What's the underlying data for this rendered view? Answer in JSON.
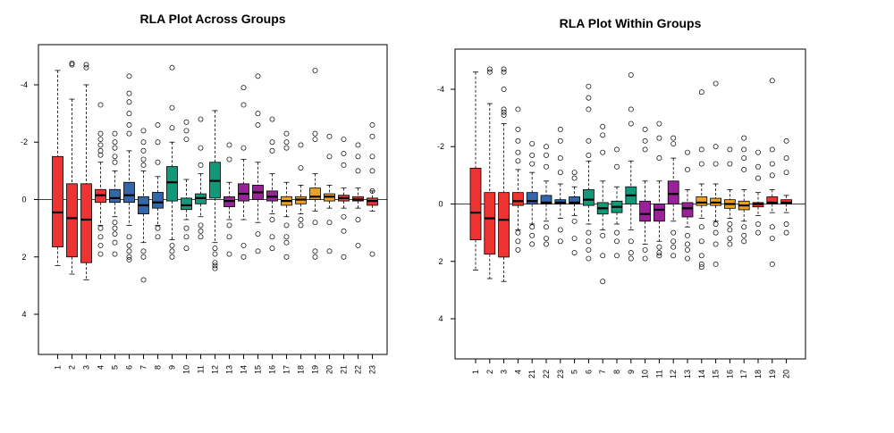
{
  "colors": {
    "red": "#EE3333",
    "blue": "#3366AA",
    "green": "#11997A",
    "purple": "#992299",
    "orange": "#EEA020",
    "outline": "#000000"
  },
  "chart_data": [
    {
      "type": "boxplot",
      "title": "RLA Plot Across Groups",
      "xlabel": "",
      "ylabel": "",
      "y_reversed": true,
      "ylim": [
        5.4,
        -5.4
      ],
      "yticks": [
        -4,
        -2,
        0,
        2,
        4
      ],
      "reference_line": 0,
      "legend": "none",
      "boxes": [
        {
          "label": "1",
          "color": "red",
          "whisker_low": -4.5,
          "q1": -1.5,
          "median": 0.45,
          "q3": 1.65,
          "whisker_high": 2.3,
          "outliers": []
        },
        {
          "label": "2",
          "color": "red",
          "whisker_low": -3.5,
          "q1": -0.55,
          "median": 0.65,
          "q3": 2.0,
          "whisker_high": 2.6,
          "outliers": [
            -4.75,
            -4.7
          ]
        },
        {
          "label": "3",
          "color": "red",
          "whisker_low": -4.0,
          "q1": -0.55,
          "median": 0.7,
          "q3": 2.2,
          "whisker_high": 2.8,
          "outliers": [
            -4.7,
            -4.6
          ]
        },
        {
          "label": "4",
          "color": "red",
          "whisker_low": -1.3,
          "q1": -0.35,
          "median": -0.15,
          "q3": 0.1,
          "whisker_high": 0.9,
          "outliers": [
            -3.3,
            -2.3,
            -2.1,
            -1.9,
            -1.7,
            -1.55,
            1.0,
            1.3,
            1.6,
            1.9
          ]
        },
        {
          "label": "5",
          "color": "blue",
          "whisker_low": -1.0,
          "q1": -0.35,
          "median": -0.05,
          "q3": 0.1,
          "whisker_high": 0.6,
          "outliers": [
            -2.3,
            -2.0,
            -1.8,
            -1.5,
            -1.3,
            0.8,
            1.0,
            1.2,
            1.5,
            1.9
          ]
        },
        {
          "label": "6",
          "color": "blue",
          "whisker_low": -1.7,
          "q1": -0.6,
          "median": -0.15,
          "q3": 0.1,
          "whisker_high": 0.9,
          "outliers": [
            -4.3,
            -3.7,
            -3.4,
            -3.0,
            -2.6,
            -2.3,
            1.3,
            1.6,
            1.8,
            2.0,
            2.1
          ]
        },
        {
          "label": "7",
          "color": "blue",
          "whisker_low": -1.0,
          "q1": -0.1,
          "median": 0.2,
          "q3": 0.5,
          "whisker_high": 1.5,
          "outliers": [
            -2.4,
            -2.0,
            -1.7,
            -1.4,
            -1.2,
            1.8,
            2.0,
            2.8
          ]
        },
        {
          "label": "8",
          "color": "blue",
          "whisker_low": -0.8,
          "q1": -0.25,
          "median": 0.1,
          "q3": 0.3,
          "whisker_high": 0.9,
          "outliers": [
            -2.6,
            -2.0,
            -1.3,
            1.0,
            1.3
          ]
        },
        {
          "label": "9",
          "color": "green",
          "whisker_low": -2.0,
          "q1": -1.15,
          "median": -0.6,
          "q3": 0.05,
          "whisker_high": 1.4,
          "outliers": [
            -4.6,
            -3.2,
            -2.5,
            1.6,
            1.8,
            2.0
          ]
        },
        {
          "label": "10",
          "color": "green",
          "whisker_low": -0.7,
          "q1": -0.05,
          "median": 0.2,
          "q3": 0.35,
          "whisker_high": 0.7,
          "outliers": [
            -2.7,
            -2.4,
            -2.1,
            1.0,
            1.3,
            1.7
          ]
        },
        {
          "label": "11",
          "color": "green",
          "whisker_low": -0.9,
          "q1": -0.2,
          "median": -0.05,
          "q3": 0.15,
          "whisker_high": 0.6,
          "outliers": [
            -2.8,
            -1.8,
            -1.2,
            0.9,
            1.1,
            1.3
          ]
        },
        {
          "label": "12",
          "color": "green",
          "whisker_low": -3.1,
          "q1": -1.3,
          "median": -0.65,
          "q3": -0.05,
          "whisker_high": 1.5,
          "outliers": [
            1.7,
            1.9,
            2.2,
            2.3,
            2.4
          ]
        },
        {
          "label": "13",
          "color": "purple",
          "whisker_low": -0.6,
          "q1": -0.1,
          "median": 0.05,
          "q3": 0.25,
          "whisker_high": 0.7,
          "outliers": [
            -1.9,
            -1.4,
            0.9,
            1.3,
            1.9
          ]
        },
        {
          "label": "14",
          "color": "purple",
          "whisker_low": -1.4,
          "q1": -0.55,
          "median": -0.2,
          "q3": 0.05,
          "whisker_high": 0.7,
          "outliers": [
            -3.9,
            -3.3,
            -1.8,
            1.6,
            2.0
          ]
        },
        {
          "label": "15",
          "color": "purple",
          "whisker_low": -1.3,
          "q1": -0.5,
          "median": -0.25,
          "q3": 0.0,
          "whisker_high": 0.8,
          "outliers": [
            -4.3,
            -3.0,
            -2.6,
            1.2,
            1.8
          ]
        },
        {
          "label": "16",
          "color": "purple",
          "whisker_low": -0.9,
          "q1": -0.3,
          "median": -0.1,
          "q3": 0.05,
          "whisker_high": 0.5,
          "outliers": [
            -2.8,
            -2.0,
            -1.7,
            0.7,
            1.3,
            1.7
          ]
        },
        {
          "label": "17",
          "color": "orange",
          "whisker_low": -0.6,
          "q1": -0.1,
          "median": 0.05,
          "q3": 0.2,
          "whisker_high": 0.6,
          "outliers": [
            -2.3,
            -2.0,
            -1.8,
            0.9,
            1.3,
            1.5,
            2.0
          ]
        },
        {
          "label": "18",
          "color": "orange",
          "whisker_low": -0.5,
          "q1": -0.1,
          "median": 0.0,
          "q3": 0.15,
          "whisker_high": 0.5,
          "outliers": [
            -1.9,
            -1.1,
            0.7,
            0.9
          ]
        },
        {
          "label": "19",
          "color": "orange",
          "whisker_low": -0.9,
          "q1": -0.4,
          "median": -0.1,
          "q3": 0.0,
          "whisker_high": 0.4,
          "outliers": [
            -4.5,
            -2.3,
            -2.1,
            0.8,
            1.8,
            2.0
          ]
        },
        {
          "label": "20",
          "color": "orange",
          "whisker_low": -0.5,
          "q1": -0.2,
          "median": -0.1,
          "q3": 0.05,
          "whisker_high": 0.3,
          "outliers": [
            -2.2,
            -1.5,
            0.8,
            1.8
          ]
        },
        {
          "label": "21",
          "color": "red",
          "whisker_low": -0.4,
          "q1": -0.15,
          "median": -0.05,
          "q3": 0.05,
          "whisker_high": 0.3,
          "outliers": [
            -2.1,
            -1.6,
            -1.2,
            0.6,
            1.1,
            2.0
          ]
        },
        {
          "label": "22",
          "color": "red",
          "whisker_low": -0.4,
          "q1": -0.1,
          "median": 0.0,
          "q3": 0.05,
          "whisker_high": 0.3,
          "outliers": [
            -1.9,
            -1.5,
            -1.0,
            0.7,
            1.6
          ]
        },
        {
          "label": "23",
          "color": "red",
          "whisker_low": -0.3,
          "q1": -0.05,
          "median": 0.05,
          "q3": 0.2,
          "whisker_high": 0.4,
          "outliers": [
            -2.6,
            -2.2,
            -1.5,
            -1.0,
            -0.3,
            1.9
          ]
        }
      ]
    },
    {
      "type": "boxplot",
      "title": "RLA Plot Within Groups",
      "xlabel": "",
      "ylabel": "",
      "y_reversed": true,
      "ylim": [
        5.4,
        -5.4
      ],
      "yticks": [
        -4,
        -2,
        0,
        2,
        4
      ],
      "reference_line": 0,
      "legend": "none",
      "boxes": [
        {
          "label": "1",
          "color": "red",
          "whisker_low": -4.6,
          "q1": -1.25,
          "median": 0.3,
          "q3": 1.25,
          "whisker_high": 2.3,
          "outliers": []
        },
        {
          "label": "2",
          "color": "red",
          "whisker_low": -3.5,
          "q1": -0.4,
          "median": 0.5,
          "q3": 1.75,
          "whisker_high": 2.6,
          "outliers": [
            -4.7,
            -4.6
          ]
        },
        {
          "label": "3",
          "color": "red",
          "whisker_low": -2.8,
          "q1": -0.4,
          "median": 0.55,
          "q3": 1.85,
          "whisker_high": 2.7,
          "outliers": [
            -4.7,
            -4.6,
            -4.0,
            -3.3,
            -3.2,
            -3.1
          ]
        },
        {
          "label": "4",
          "color": "red",
          "whisker_low": -1.2,
          "q1": -0.4,
          "median": -0.1,
          "q3": 0.05,
          "whisker_high": 0.9,
          "outliers": [
            -3.3,
            -2.6,
            -2.2,
            -1.8,
            -1.5,
            1.0,
            1.3,
            1.6
          ]
        },
        {
          "label": "21",
          "color": "blue",
          "whisker_low": -1.1,
          "q1": -0.4,
          "median": -0.1,
          "q3": 0.0,
          "whisker_high": 0.7,
          "outliers": [
            -2.1,
            -1.7,
            -1.4,
            0.8,
            1.1,
            1.4
          ]
        },
        {
          "label": "22",
          "color": "blue",
          "whisker_low": -0.8,
          "q1": -0.3,
          "median": -0.05,
          "q3": 0.0,
          "whisker_high": 0.6,
          "outliers": [
            -2.0,
            -1.7,
            -1.3,
            0.8,
            1.2,
            1.4
          ]
        },
        {
          "label": "23",
          "color": "blue",
          "whisker_low": -0.7,
          "q1": -0.15,
          "median": -0.05,
          "q3": 0.0,
          "whisker_high": 0.5,
          "outliers": [
            -2.6,
            -2.2,
            -1.6,
            -1.1,
            0.9,
            1.3
          ]
        },
        {
          "label": "5",
          "color": "blue",
          "whisker_low": -0.6,
          "q1": -0.25,
          "median": -0.05,
          "q3": 0.0,
          "whisker_high": 0.4,
          "outliers": [
            -1.1,
            -0.9,
            0.6,
            1.2,
            1.7
          ]
        },
        {
          "label": "6",
          "color": "green",
          "whisker_low": -1.5,
          "q1": -0.5,
          "median": -0.15,
          "q3": 0.05,
          "whisker_high": 0.7,
          "outliers": [
            -4.1,
            -3.7,
            -3.3,
            -2.2,
            -1.7,
            1.0,
            1.3,
            1.6,
            1.9
          ]
        },
        {
          "label": "7",
          "color": "green",
          "whisker_low": -0.8,
          "q1": -0.05,
          "median": 0.15,
          "q3": 0.35,
          "whisker_high": 0.9,
          "outliers": [
            -2.7,
            -2.4,
            -1.8,
            1.1,
            1.8,
            2.7
          ]
        },
        {
          "label": "8",
          "color": "green",
          "whisker_low": -0.6,
          "q1": -0.1,
          "median": 0.1,
          "q3": 0.3,
          "whisker_high": 0.7,
          "outliers": [
            -1.9,
            -1.3,
            1.0,
            1.3,
            1.8
          ]
        },
        {
          "label": "9",
          "color": "green",
          "whisker_low": -1.5,
          "q1": -0.6,
          "median": -0.3,
          "q3": 0.0,
          "whisker_high": 0.9,
          "outliers": [
            -4.5,
            -3.3,
            -2.8,
            1.3,
            1.7,
            1.9
          ]
        },
        {
          "label": "10",
          "color": "purple",
          "whisker_low": -0.8,
          "q1": -0.1,
          "median": 0.35,
          "q3": 0.6,
          "whisker_high": 1.4,
          "outliers": [
            -2.6,
            -2.2,
            -1.9,
            1.6,
            1.9
          ]
        },
        {
          "label": "11",
          "color": "purple",
          "whisker_low": -0.8,
          "q1": 0.0,
          "median": 0.2,
          "q3": 0.6,
          "whisker_high": 1.3,
          "outliers": [
            -2.8,
            -2.3,
            -1.6,
            1.5,
            1.7,
            1.8
          ]
        },
        {
          "label": "12",
          "color": "purple",
          "whisker_low": -1.6,
          "q1": -0.8,
          "median": -0.35,
          "q3": 0.0,
          "whisker_high": 0.6,
          "outliers": [
            -2.3,
            -2.1,
            1.0,
            1.3,
            1.5,
            1.8
          ]
        },
        {
          "label": "13",
          "color": "purple",
          "whisker_low": -0.5,
          "q1": -0.05,
          "median": 0.15,
          "q3": 0.45,
          "whisker_high": 0.8,
          "outliers": [
            -1.8,
            -1.2,
            1.1,
            1.4,
            1.6,
            1.9
          ]
        },
        {
          "label": "14",
          "color": "orange",
          "whisker_low": -0.7,
          "q1": -0.25,
          "median": -0.05,
          "q3": 0.05,
          "whisker_high": 0.5,
          "outliers": [
            -3.9,
            -1.9,
            -1.4,
            0.8,
            1.3,
            1.8,
            2.1,
            2.2
          ]
        },
        {
          "label": "15",
          "color": "orange",
          "whisker_low": -0.7,
          "q1": -0.2,
          "median": -0.05,
          "q3": 0.05,
          "whisker_high": 0.6,
          "outliers": [
            -4.2,
            -2.0,
            -1.4,
            0.7,
            1.0,
            1.4,
            2.1
          ]
        },
        {
          "label": "16",
          "color": "orange",
          "whisker_low": -0.5,
          "q1": -0.15,
          "median": 0.0,
          "q3": 0.15,
          "whisker_high": 0.5,
          "outliers": [
            -1.9,
            -1.4,
            0.7,
            0.9,
            1.2,
            1.4
          ]
        },
        {
          "label": "17",
          "color": "orange",
          "whisker_low": -0.5,
          "q1": -0.1,
          "median": 0.05,
          "q3": 0.2,
          "whisker_high": 0.6,
          "outliers": [
            -2.3,
            -1.9,
            -1.6,
            -1.2,
            0.8,
            1.1,
            1.3
          ]
        },
        {
          "label": "18",
          "color": "red",
          "whisker_low": -0.4,
          "q1": -0.05,
          "median": 0.0,
          "q3": 0.1,
          "whisker_high": 0.4,
          "outliers": [
            -1.8,
            -1.3,
            -0.9,
            0.7,
            1.0
          ]
        },
        {
          "label": "19",
          "color": "red",
          "whisker_low": -0.5,
          "q1": -0.25,
          "median": -0.05,
          "q3": 0.0,
          "whisker_high": 0.3,
          "outliers": [
            -4.3,
            -1.9,
            -1.4,
            -1.0,
            0.8,
            1.2,
            2.1
          ]
        },
        {
          "label": "20",
          "color": "red",
          "whisker_low": -0.3,
          "q1": -0.15,
          "median": -0.05,
          "q3": 0.0,
          "whisker_high": 0.3,
          "outliers": [
            -2.2,
            -1.6,
            -1.1,
            0.7,
            1.0
          ]
        }
      ]
    }
  ]
}
